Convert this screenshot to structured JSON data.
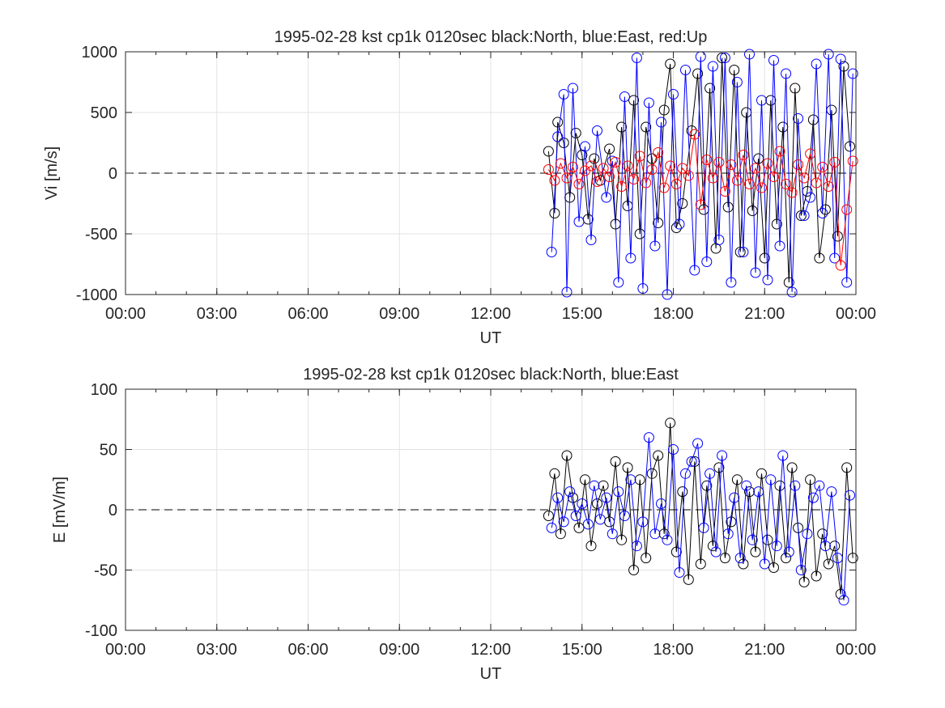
{
  "chart_data": [
    {
      "type": "scatter",
      "title": "1995-02-28 kst cp1k 0120sec black:North, blue:East, red:Up",
      "xlabel": "UT",
      "ylabel": "Vi [m/s]",
      "xlim": [
        0,
        24
      ],
      "ylim": [
        -1000,
        1000
      ],
      "xticks": [
        0,
        3,
        6,
        9,
        12,
        15,
        18,
        21,
        24
      ],
      "xtick_labels": [
        "00:00",
        "03:00",
        "06:00",
        "09:00",
        "12:00",
        "15:00",
        "18:00",
        "21:00",
        "00:00"
      ],
      "yticks": [
        -1000,
        -500,
        0,
        500,
        1000
      ],
      "ytick_labels": [
        "-1000",
        "-500",
        "0",
        "500",
        "1000"
      ],
      "grid": true,
      "reference_line": {
        "y": 0,
        "style": "dashed",
        "color": "#000000"
      },
      "series": [
        {
          "name": "North",
          "color": "#000000",
          "marker": "circle-open",
          "x": [
            13.9,
            14.1,
            14.2,
            14.4,
            14.6,
            14.8,
            15.0,
            15.2,
            15.4,
            15.6,
            15.9,
            16.1,
            16.3,
            16.5,
            16.7,
            16.9,
            17.1,
            17.3,
            17.5,
            17.7,
            17.9,
            18.1,
            18.3,
            18.6,
            18.8,
            19.0,
            19.2,
            19.4,
            19.6,
            19.8,
            20.0,
            20.2,
            20.4,
            20.6,
            20.8,
            21.0,
            21.2,
            21.4,
            21.6,
            21.8,
            22.0,
            22.2,
            22.4,
            22.6,
            22.8,
            23.0,
            23.2,
            23.4,
            23.6,
            23.8
          ],
          "y": [
            180,
            -330,
            420,
            250,
            -200,
            330,
            150,
            -380,
            120,
            -60,
            200,
            -420,
            380,
            -270,
            600,
            -500,
            380,
            120,
            -410,
            520,
            900,
            -450,
            -250,
            350,
            820,
            -300,
            700,
            -620,
            950,
            -280,
            850,
            -650,
            500,
            -310,
            120,
            -700,
            600,
            -420,
            380,
            -900,
            700,
            -350,
            -150,
            440,
            -700,
            -300,
            520,
            -520,
            880,
            220
          ]
        },
        {
          "name": "East",
          "color": "#0000ff",
          "marker": "circle-open",
          "x": [
            14.0,
            14.2,
            14.4,
            14.5,
            14.7,
            14.9,
            15.1,
            15.3,
            15.5,
            15.8,
            16.0,
            16.2,
            16.4,
            16.6,
            16.8,
            17.0,
            17.2,
            17.4,
            17.6,
            17.8,
            18.0,
            18.2,
            18.4,
            18.7,
            18.9,
            19.1,
            19.3,
            19.5,
            19.7,
            19.9,
            20.1,
            20.3,
            20.5,
            20.7,
            20.9,
            21.1,
            21.3,
            21.5,
            21.7,
            21.9,
            22.1,
            22.3,
            22.5,
            22.7,
            22.9,
            23.1,
            23.3,
            23.5,
            23.7,
            23.9
          ],
          "y": [
            -650,
            300,
            650,
            -980,
            700,
            -400,
            220,
            -550,
            350,
            -200,
            100,
            -900,
            630,
            -700,
            950,
            -950,
            580,
            -600,
            420,
            -1000,
            650,
            -420,
            850,
            -800,
            960,
            -730,
            880,
            -550,
            950,
            -900,
            750,
            -650,
            980,
            -820,
            600,
            -880,
            930,
            -600,
            820,
            -980,
            450,
            -350,
            -200,
            900,
            -330,
            980,
            -700,
            940,
            -900,
            820
          ]
        },
        {
          "name": "Up",
          "color": "#ff0000",
          "marker": "circle-open",
          "x": [
            13.9,
            14.1,
            14.3,
            14.5,
            14.7,
            14.9,
            15.1,
            15.3,
            15.5,
            15.7,
            15.9,
            16.1,
            16.3,
            16.5,
            16.7,
            16.9,
            17.1,
            17.3,
            17.5,
            17.7,
            17.9,
            18.1,
            18.3,
            18.5,
            18.7,
            18.9,
            19.1,
            19.3,
            19.5,
            19.7,
            19.9,
            20.1,
            20.3,
            20.5,
            20.7,
            20.9,
            21.1,
            21.3,
            21.5,
            21.7,
            21.9,
            22.1,
            22.3,
            22.5,
            22.7,
            22.9,
            23.1,
            23.3,
            23.5,
            23.7,
            23.9
          ],
          "y": [
            30,
            -60,
            80,
            -40,
            50,
            -90,
            20,
            60,
            -70,
            40,
            -30,
            90,
            -110,
            60,
            -50,
            140,
            -80,
            30,
            170,
            -120,
            60,
            -90,
            40,
            -20,
            320,
            -260,
            110,
            -40,
            90,
            -150,
            70,
            -60,
            150,
            -90,
            40,
            -120,
            80,
            -30,
            180,
            -90,
            -160,
            70,
            -40,
            160,
            -80,
            50,
            -110,
            90,
            -760,
            -300,
            100
          ]
        }
      ]
    },
    {
      "type": "scatter",
      "title": "1995-02-28 kst cp1k 0120sec black:North, blue:East",
      "xlabel": "UT",
      "ylabel": "E [mV/m]",
      "xlim": [
        0,
        24
      ],
      "ylim": [
        -100,
        100
      ],
      "xticks": [
        0,
        3,
        6,
        9,
        12,
        15,
        18,
        21,
        24
      ],
      "xtick_labels": [
        "00:00",
        "03:00",
        "06:00",
        "09:00",
        "12:00",
        "15:00",
        "18:00",
        "21:00",
        "00:00"
      ],
      "yticks": [
        -100,
        -50,
        0,
        50,
        100
      ],
      "ytick_labels": [
        "-100",
        "-50",
        "0",
        "50",
        "100"
      ],
      "grid": true,
      "reference_line": {
        "y": 0,
        "style": "dashed",
        "color": "#000000"
      },
      "series": [
        {
          "name": "North",
          "color": "#000000",
          "marker": "circle-open",
          "x": [
            13.9,
            14.1,
            14.3,
            14.5,
            14.7,
            14.9,
            15.1,
            15.3,
            15.5,
            15.7,
            15.9,
            16.1,
            16.3,
            16.5,
            16.7,
            16.9,
            17.1,
            17.3,
            17.5,
            17.7,
            17.9,
            18.1,
            18.3,
            18.5,
            18.7,
            18.9,
            19.1,
            19.3,
            19.5,
            19.7,
            19.9,
            20.1,
            20.3,
            20.5,
            20.7,
            20.9,
            21.1,
            21.3,
            21.5,
            21.7,
            21.9,
            22.1,
            22.3,
            22.5,
            22.7,
            22.9,
            23.1,
            23.3,
            23.5,
            23.7,
            23.9
          ],
          "y": [
            -5,
            30,
            -20,
            45,
            10,
            -15,
            25,
            -30,
            5,
            20,
            -10,
            40,
            -25,
            35,
            -50,
            25,
            -40,
            30,
            45,
            -20,
            72,
            -35,
            15,
            -58,
            40,
            -45,
            20,
            -30,
            35,
            -40,
            -10,
            25,
            -45,
            15,
            -35,
            30,
            -25,
            -48,
            20,
            -40,
            35,
            -15,
            -60,
            25,
            -55,
            -20,
            -45,
            -30,
            -70,
            35,
            -40
          ]
        },
        {
          "name": "East",
          "color": "#0000ff",
          "marker": "circle-open",
          "x": [
            14.0,
            14.2,
            14.4,
            14.6,
            14.8,
            15.0,
            15.2,
            15.4,
            15.6,
            15.8,
            16.0,
            16.2,
            16.4,
            16.6,
            16.8,
            17.0,
            17.2,
            17.4,
            17.6,
            17.8,
            18.0,
            18.2,
            18.4,
            18.6,
            18.8,
            19.0,
            19.2,
            19.4,
            19.6,
            19.8,
            20.0,
            20.2,
            20.4,
            20.6,
            20.8,
            21.0,
            21.2,
            21.4,
            21.6,
            21.8,
            22.0,
            22.2,
            22.4,
            22.6,
            22.8,
            23.0,
            23.2,
            23.4,
            23.6,
            23.8
          ],
          "y": [
            -15,
            10,
            -10,
            15,
            -5,
            5,
            -12,
            20,
            -8,
            10,
            -20,
            15,
            -5,
            25,
            -30,
            -10,
            60,
            -20,
            5,
            -25,
            50,
            -52,
            30,
            40,
            55,
            -15,
            30,
            -35,
            45,
            -20,
            10,
            -40,
            20,
            -25,
            15,
            -45,
            25,
            -30,
            45,
            -35,
            20,
            -50,
            -20,
            10,
            20,
            -30,
            15,
            -40,
            -75,
            12
          ]
        }
      ]
    }
  ]
}
